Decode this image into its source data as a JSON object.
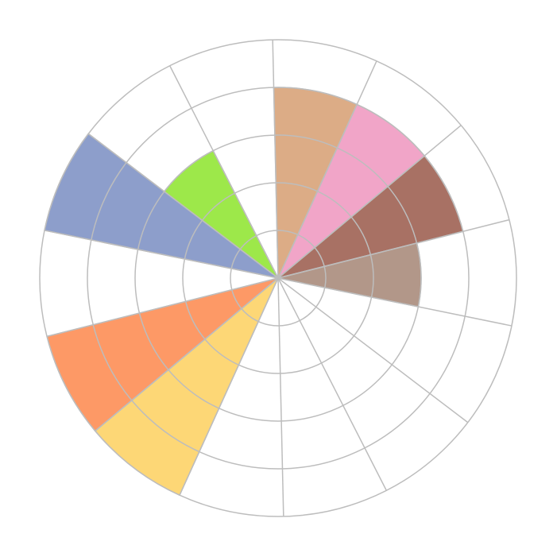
{
  "chart_data": {
    "type": "barpolar",
    "sectors": 14,
    "rotation_deg_first_sector_center": 11.55,
    "direction": "clockwise",
    "radial_range": [
      0,
      5
    ],
    "radial_grid": [
      1,
      2,
      3,
      4,
      5
    ],
    "grid": true,
    "grid_color": "#bdbdbd",
    "values": [
      4,
      4,
      4,
      3,
      0,
      0,
      0,
      0,
      5,
      5,
      0,
      5,
      3,
      0
    ],
    "colors": [
      "#dcac86",
      "#f1a5c8",
      "#a87164",
      "#b29789",
      null,
      null,
      null,
      null,
      "#fdd776",
      "#fd9966",
      null,
      "#8d9ecb",
      "#9de84a",
      null
    ]
  }
}
